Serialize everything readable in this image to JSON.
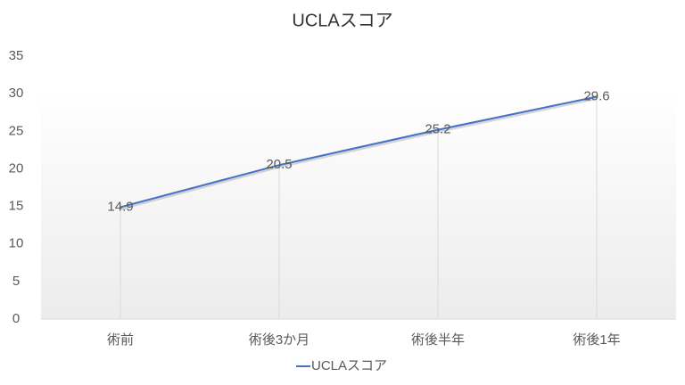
{
  "chart_data": {
    "type": "line",
    "title": "UCLAスコア",
    "categories": [
      "術前",
      "術後3か月",
      "術後半年",
      "術後1年"
    ],
    "series": [
      {
        "name": "UCLAスコア",
        "color": "#4472c4",
        "values": [
          14.9,
          20.5,
          25.2,
          29.6
        ]
      }
    ],
    "ylim": [
      0,
      35
    ],
    "yticks": [
      0,
      5,
      10,
      15,
      20,
      25,
      30,
      35
    ],
    "data_labels": true,
    "drop_lines": true,
    "legend": "bottom"
  }
}
